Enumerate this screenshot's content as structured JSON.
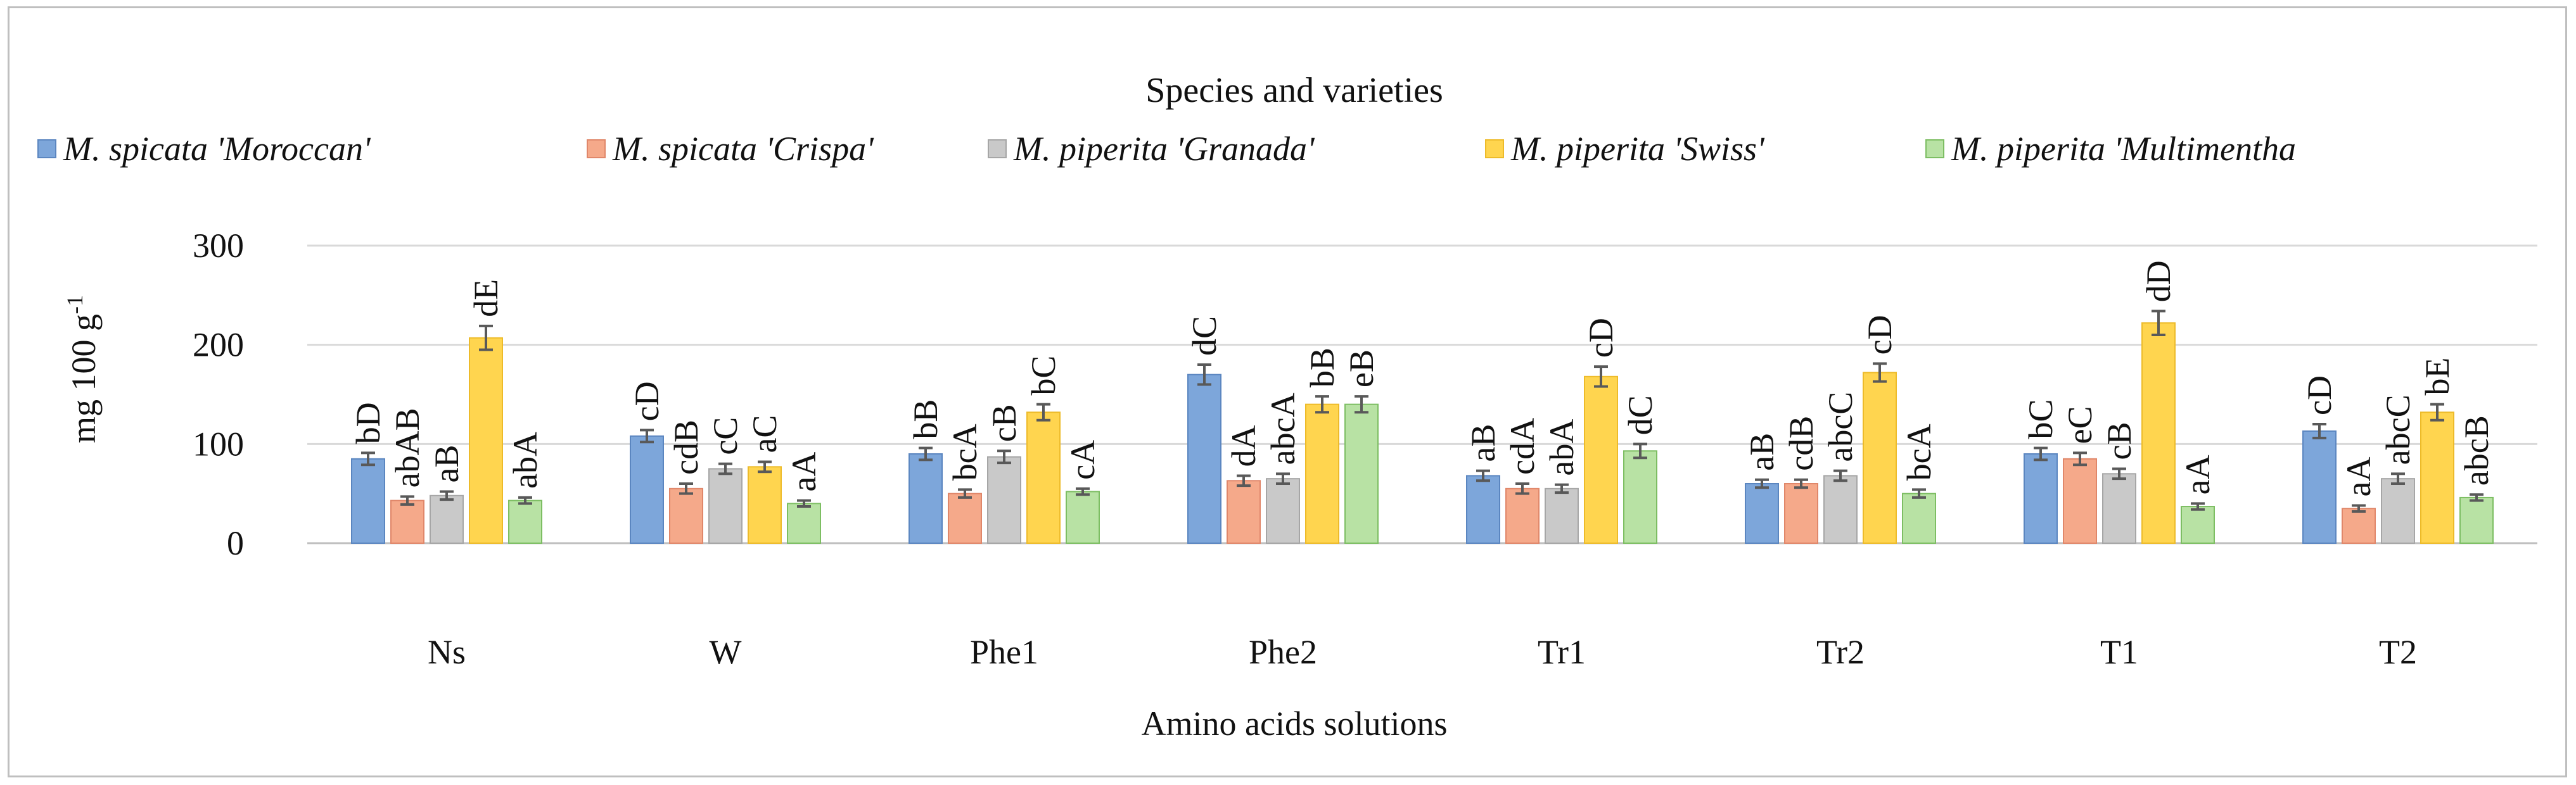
{
  "chart_data": {
    "type": "bar",
    "title": "Species and varieties",
    "xlabel": "Amino acids solutions",
    "ylabel": "mg 100 g-1",
    "ylabel_main": "mg 100 g",
    "ylabel_sup": "-1",
    "ylim": [
      0,
      300
    ],
    "yticks": [
      0,
      100,
      200,
      300
    ],
    "grid": true,
    "legend_position": "top",
    "categories": [
      "Ns",
      "W",
      "Phe1",
      "Phe2",
      "Tr1",
      "Tr2",
      "T1",
      "T2"
    ],
    "series": [
      {
        "name": "M. spicata 'Moroccan'",
        "color": "#7DA6DA",
        "border": "#5B86C0",
        "values": [
          85,
          108,
          90,
          170,
          68,
          60,
          90,
          113
        ],
        "errors": [
          6,
          6,
          6,
          10,
          5,
          4,
          6,
          7
        ],
        "labels": [
          "bD",
          "cD",
          "bB",
          "dC",
          "aB",
          "aB",
          "bC",
          "cD"
        ]
      },
      {
        "name": "M. spicata 'Crispa'",
        "color": "#F5A98A",
        "border": "#E0876A",
        "values": [
          43,
          55,
          50,
          63,
          55,
          60,
          85,
          35
        ],
        "errors": [
          4,
          5,
          4,
          5,
          5,
          4,
          6,
          3
        ],
        "labels": [
          "abAB",
          "cdB",
          "bcA",
          "dA",
          "cdA",
          "cdB",
          "eC",
          "aA"
        ]
      },
      {
        "name": "M. piperita 'Granada'",
        "color": "#C9C9C9",
        "border": "#A6A6A6",
        "values": [
          48,
          75,
          87,
          65,
          55,
          68,
          70,
          65
        ],
        "errors": [
          4,
          5,
          6,
          5,
          4,
          5,
          5,
          5
        ],
        "labels": [
          "aB",
          "cC",
          "cB",
          "abcA",
          "abA",
          "abcC",
          "cB",
          "abcC"
        ]
      },
      {
        "name": "M. piperita 'Swiss'",
        "color": "#FFD54F",
        "border": "#EDBB2A",
        "values": [
          207,
          77,
          132,
          140,
          168,
          172,
          222,
          132
        ],
        "errors": [
          12,
          5,
          8,
          8,
          10,
          9,
          12,
          8
        ],
        "labels": [
          "dE",
          "aC",
          "bC",
          "bB",
          "cD",
          "cD",
          "dD",
          "bE"
        ]
      },
      {
        "name": "M. piperita 'Multimentha",
        "color": "#B8E2A4",
        "border": "#7DBE63",
        "values": [
          43,
          40,
          52,
          140,
          93,
          50,
          37,
          46
        ],
        "errors": [
          3,
          3,
          3,
          8,
          7,
          4,
          3,
          3
        ],
        "labels": [
          "abA",
          "aA",
          "cA",
          "eB",
          "dC",
          "bcA",
          "aA",
          "abcB"
        ]
      }
    ]
  }
}
